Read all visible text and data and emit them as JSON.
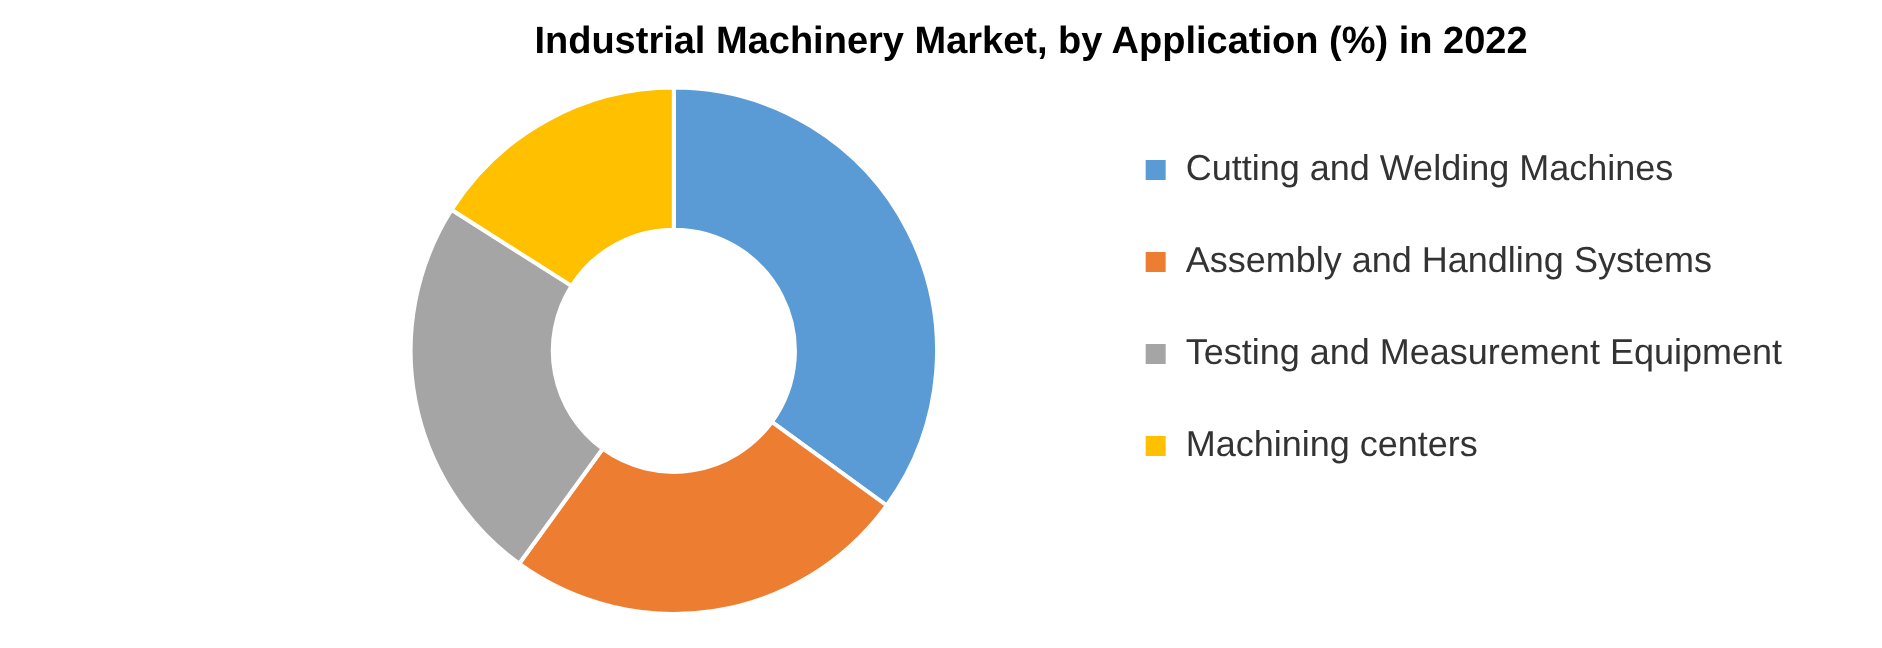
{
  "chart_data": {
    "type": "donut",
    "title": "Industrial Machinery Market, by Application (%) in 2022",
    "categories": [
      "Cutting and Welding Machines",
      "Assembly and Handling Systems",
      "Testing and Measurement Equipment",
      "Machining centers"
    ],
    "values": [
      35,
      25,
      24,
      16
    ],
    "colors": [
      "#5b9bd5",
      "#ed7d31",
      "#a5a5a5",
      "#ffc000"
    ],
    "legend": "right"
  }
}
